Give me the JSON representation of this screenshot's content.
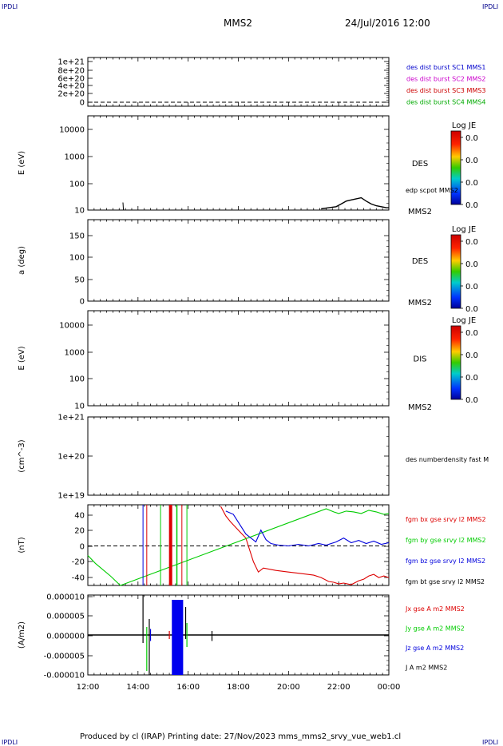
{
  "header": {
    "corner_label": "IPDLI",
    "spacecraft": "MMS2",
    "date": "24/Jul/2016 12:00"
  },
  "footer": {
    "text": "Produced by cl (IRAP)   Printing date: 27/Nov/2023   mms_mms2_srvy_vue_web1.cl"
  },
  "colors": {
    "mms1": "#0000cc",
    "mms2": "#cc00cc",
    "mms3": "#cc0000",
    "mms4": "#00aa00",
    "bx": "#dd0000",
    "by": "#00cc00",
    "bz": "#0000dd",
    "bt": "#000000"
  },
  "chart_data": [
    {
      "type": "line",
      "panel": "des-dist-burst",
      "ylabel": "",
      "yticks": [
        "0",
        "2e+20",
        "4e+20",
        "6e+20",
        "8e+20",
        "1e+21"
      ],
      "ylim": [
        0,
        1.1e+21
      ],
      "series": [
        {
          "name": "des dist burst SC1 MMS1",
          "color": "#0000cc"
        },
        {
          "name": "des dist burst SC2 MMS2",
          "color": "#cc00cc"
        },
        {
          "name": "des dist burst SC3 MMS3",
          "color": "#cc0000"
        },
        {
          "name": "des dist burst SC4 MMS4",
          "color": "#00aa00"
        }
      ],
      "reference_line": 0
    },
    {
      "type": "heatmap",
      "panel": "des-energy",
      "ylabel": "E (eV)",
      "yticks": [
        "10",
        "100",
        "1000",
        "10000"
      ],
      "ylim": [
        10,
        15000
      ],
      "yscale": "log",
      "product_label": "DES",
      "spacecraft_label": "MMS2",
      "colorbar": {
        "title": "Log JE",
        "ticks": [
          "0.0",
          "0.0",
          "0.0",
          "0.0"
        ]
      },
      "overlay": {
        "name": "edp scpot MMS2",
        "x": [
          13.4,
          13.42,
          21.3,
          21.6,
          21.9,
          22.1,
          22.3,
          22.5,
          22.7,
          22.9,
          23.1,
          23.3,
          23.5,
          23.7,
          23.9,
          24.0
        ],
        "y": [
          18,
          10,
          11,
          12,
          13,
          16,
          20,
          22,
          24,
          26,
          20,
          16,
          14,
          13,
          12,
          12
        ]
      }
    },
    {
      "type": "heatmap",
      "panel": "des-pitch-angle",
      "ylabel": "a (deg)",
      "yticks": [
        "0",
        "50",
        "100",
        "150"
      ],
      "ylim": [
        0,
        180
      ],
      "product_label": "DES",
      "spacecraft_label": "MMS2",
      "colorbar": {
        "title": "Log JE",
        "ticks": [
          "0.0",
          "0.0",
          "0.0",
          "0.0"
        ]
      }
    },
    {
      "type": "heatmap",
      "panel": "dis-energy",
      "ylabel": "E (eV)",
      "yticks": [
        "10",
        "100",
        "1000",
        "10000"
      ],
      "ylim": [
        10,
        15000
      ],
      "yscale": "log",
      "product_label": "DIS",
      "spacecraft_label": "MMS2",
      "colorbar": {
        "title": "Log JE",
        "ticks": [
          "0.0",
          "0.0",
          "0.0",
          "0.0"
        ]
      }
    },
    {
      "type": "line",
      "panel": "des-numberdensity",
      "ylabel": "(cm^-3)",
      "yticks": [
        "1e+19",
        "1e+20",
        "1e+21"
      ],
      "ylim": [
        1e+19,
        1e+21
      ],
      "yscale": "log",
      "series": [
        {
          "name": "des numberdensity fast M"
        }
      ]
    },
    {
      "type": "line",
      "panel": "fgm",
      "ylabel": "(nT)",
      "yticks": [
        "-40",
        "-20",
        "0",
        "20",
        "40"
      ],
      "ylim": [
        -50,
        52
      ],
      "reference_line": 0,
      "series": [
        {
          "name": "fgm bx gse srvy l2 MMS2",
          "color": "#dd0000",
          "x": [
            17.3,
            17.5,
            17.7,
            18.0,
            18.3,
            18.6,
            18.8,
            19.0,
            19.5,
            20.0,
            20.5,
            21.0,
            21.3,
            21.6,
            21.8,
            22.0,
            22.2,
            22.5,
            22.8,
            23.0,
            23.2,
            23.4,
            23.6,
            23.8,
            24.0
          ],
          "y": [
            50,
            38,
            30,
            20,
            10,
            -20,
            -33,
            -28,
            -31,
            -33,
            -35,
            -37,
            -40,
            -45,
            -46,
            -48,
            -47,
            -49,
            -44,
            -42,
            -38,
            -36,
            -40,
            -38,
            -40
          ]
        },
        {
          "name": "fgm by gse srvy l2 MMS2",
          "color": "#00cc00",
          "x": [
            12.0,
            12.3,
            12.6,
            12.9,
            13.1,
            13.3,
            21.5,
            21.8,
            22.0,
            22.3,
            22.6,
            22.9,
            23.2,
            23.5,
            23.8,
            24.0
          ],
          "y": [
            -12,
            -22,
            -30,
            -38,
            -44,
            -50,
            47,
            43,
            41,
            44,
            43,
            41,
            45,
            43,
            40,
            41
          ]
        },
        {
          "name": "fgm bz gse srvy l2 MMS2",
          "color": "#0000dd",
          "x": [
            17.5,
            17.8,
            18.0,
            18.3,
            18.5,
            18.7,
            18.9,
            19.1,
            19.3,
            19.6,
            20.0,
            20.4,
            20.8,
            21.2,
            21.5,
            21.9,
            22.2,
            22.5,
            22.8,
            23.1,
            23.4,
            23.7,
            24.0
          ],
          "y": [
            44,
            40,
            30,
            15,
            10,
            5,
            20,
            8,
            3,
            1,
            0,
            2,
            0,
            3,
            1,
            5,
            10,
            4,
            7,
            3,
            6,
            2,
            4
          ]
        },
        {
          "name": "fgm bt gse srvy l2 MMS2",
          "color": "#000000"
        }
      ]
    },
    {
      "type": "line",
      "panel": "current-density",
      "ylabel": "(A/m2)",
      "yticks": [
        "-0.000010",
        "-0.000005",
        "0.000000",
        "0.000005",
        "0.000010"
      ],
      "ylim": [
        -1e-05,
        1e-05
      ],
      "series": [
        {
          "name": "Jx gse A m2 MMS2",
          "color": "#dd0000"
        },
        {
          "name": "Jy gse A m2 MMS2",
          "color": "#00cc00"
        },
        {
          "name": "Jz gse A m2 MMS2",
          "color": "#0000dd"
        },
        {
          "name": "J A m2 MMS2",
          "color": "#000000"
        }
      ]
    }
  ],
  "x_axis": {
    "ticks": [
      "12:00",
      "14:00",
      "16:00",
      "18:00",
      "20:00",
      "22:00",
      "00:00"
    ],
    "xlim": [
      12,
      24
    ]
  }
}
